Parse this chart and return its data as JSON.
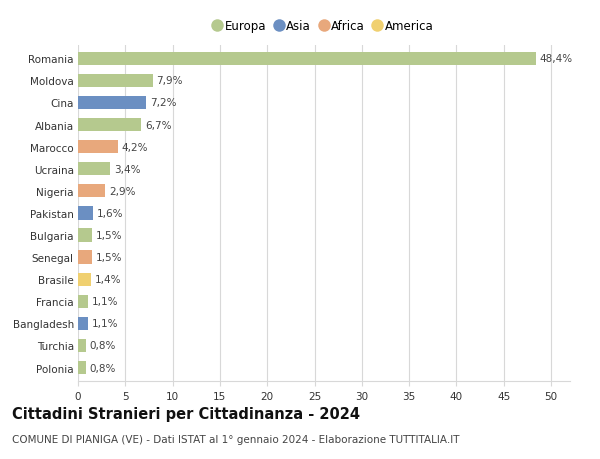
{
  "countries": [
    "Romania",
    "Moldova",
    "Cina",
    "Albania",
    "Marocco",
    "Ucraina",
    "Nigeria",
    "Pakistan",
    "Bulgaria",
    "Senegal",
    "Brasile",
    "Francia",
    "Bangladesh",
    "Turchia",
    "Polonia"
  ],
  "values": [
    48.4,
    7.9,
    7.2,
    6.7,
    4.2,
    3.4,
    2.9,
    1.6,
    1.5,
    1.5,
    1.4,
    1.1,
    1.1,
    0.8,
    0.8
  ],
  "labels": [
    "48,4%",
    "7,9%",
    "7,2%",
    "6,7%",
    "4,2%",
    "3,4%",
    "2,9%",
    "1,6%",
    "1,5%",
    "1,5%",
    "1,4%",
    "1,1%",
    "1,1%",
    "0,8%",
    "0,8%"
  ],
  "continents": [
    "Europa",
    "Europa",
    "Asia",
    "Europa",
    "Africa",
    "Europa",
    "Africa",
    "Asia",
    "Europa",
    "Africa",
    "America",
    "Europa",
    "Asia",
    "Europa",
    "Europa"
  ],
  "continent_colors": {
    "Europa": "#b5c98e",
    "Asia": "#6b8fc2",
    "Africa": "#e8a87c",
    "America": "#f0d070"
  },
  "legend_order": [
    "Europa",
    "Asia",
    "Africa",
    "America"
  ],
  "title": "Cittadini Stranieri per Cittadinanza - 2024",
  "subtitle": "COMUNE DI PIANIGA (VE) - Dati ISTAT al 1° gennaio 2024 - Elaborazione TUTTITALIA.IT",
  "xlim": [
    0,
    52
  ],
  "xticks": [
    0,
    5,
    10,
    15,
    20,
    25,
    30,
    35,
    40,
    45,
    50
  ],
  "background_color": "#ffffff",
  "grid_color": "#d8d8d8",
  "bar_height": 0.6,
  "title_fontsize": 10.5,
  "subtitle_fontsize": 7.5,
  "label_fontsize": 7.5,
  "tick_fontsize": 7.5,
  "legend_fontsize": 8.5
}
